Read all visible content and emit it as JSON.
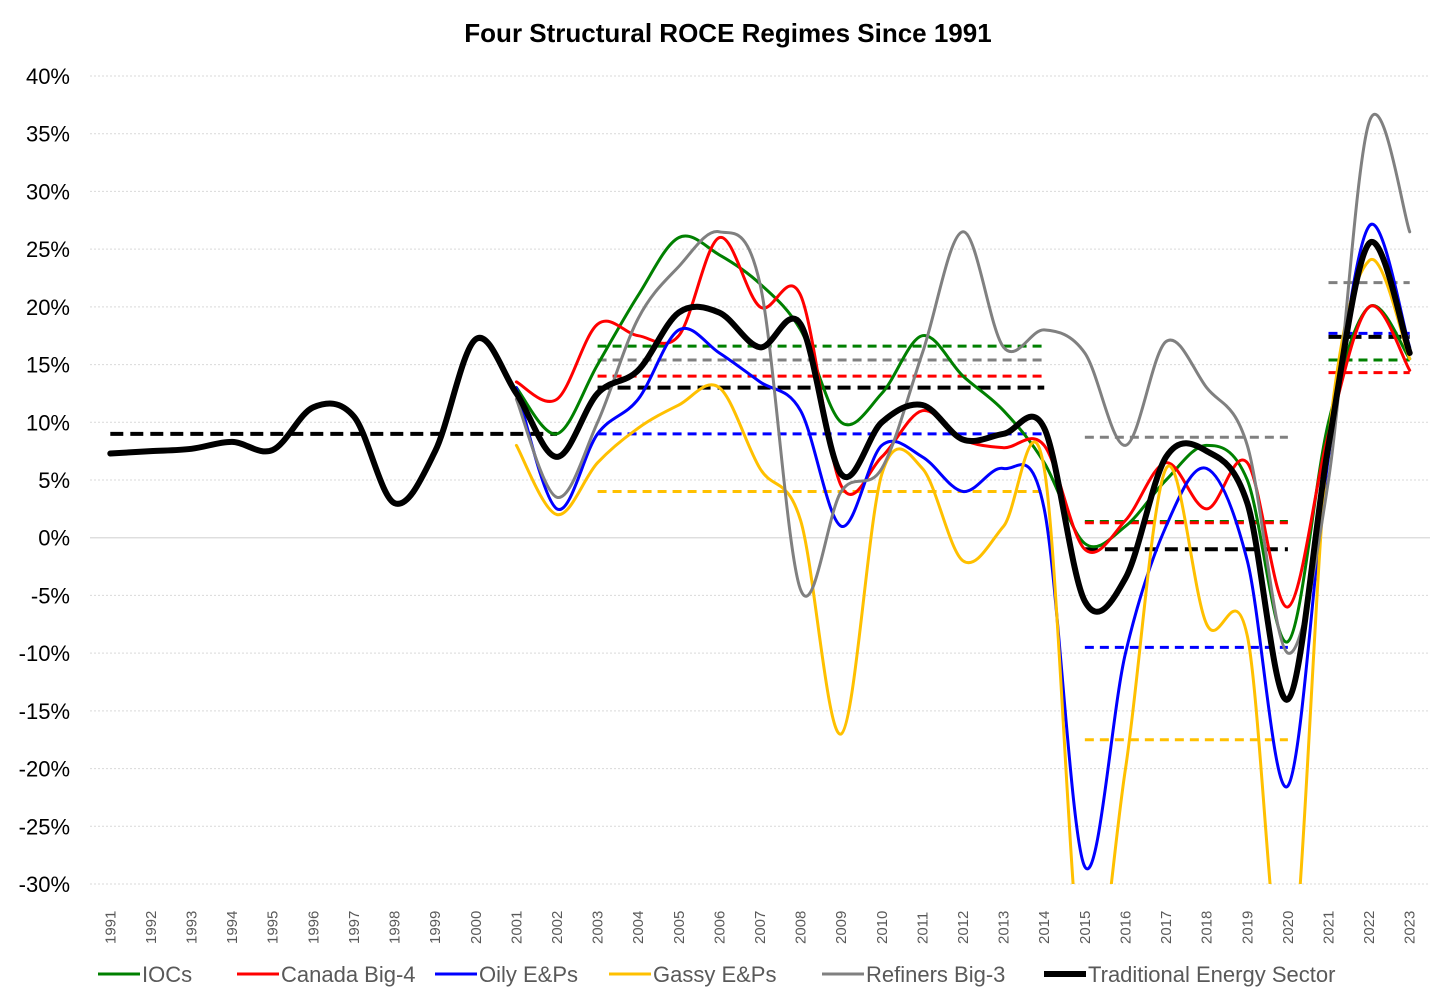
{
  "chart_data": {
    "type": "line",
    "title": "Four Structural ROCE Regimes Since 1991",
    "xlabel": "",
    "ylabel": "",
    "ylim": [
      -30,
      40
    ],
    "yticks": [
      40,
      35,
      30,
      25,
      20,
      15,
      10,
      5,
      0,
      -5,
      -10,
      -15,
      -20,
      -25,
      -30
    ],
    "ytick_labels": [
      "40%",
      "35%",
      "30%",
      "25%",
      "20%",
      "15%",
      "10%",
      "5%",
      "0%",
      "-5%",
      "-10%",
      "-15%",
      "-20%",
      "-25%",
      "-30%"
    ],
    "x": [
      1991,
      1992,
      1993,
      1994,
      1995,
      1996,
      1997,
      1998,
      1999,
      2000,
      2001,
      2002,
      2003,
      2004,
      2005,
      2006,
      2007,
      2008,
      2009,
      2010,
      2011,
      2012,
      2013,
      2014,
      2015,
      2016,
      2017,
      2018,
      2019,
      2020,
      2021,
      2022,
      2023
    ],
    "x_labels": [
      "1991",
      "1992",
      "1993",
      "1994",
      "1995",
      "1996",
      "1997",
      "1998",
      "1999",
      "2000",
      "2001",
      "2002",
      "2003",
      "2004",
      "2005",
      "2006",
      "2007",
      "2008",
      "2009",
      "2010",
      "2011",
      "2012",
      "2013",
      "2014",
      "2015",
      "2016",
      "2017",
      "2018",
      "2019",
      "2020",
      "2021",
      "2022",
      "2023"
    ],
    "grid": true,
    "legend_position": "bottom",
    "series": [
      {
        "name": "IOCs",
        "color": "#008000",
        "width": 3,
        "x": [
          2001,
          2002,
          2003,
          2004,
          2005,
          2006,
          2007,
          2008,
          2009,
          2010,
          2011,
          2012,
          2013,
          2014,
          2015,
          2016,
          2017,
          2018,
          2019,
          2020,
          2021,
          2022,
          2023
        ],
        "values": [
          13.0,
          9.0,
          15.0,
          21.0,
          26.0,
          24.5,
          22.0,
          18.0,
          10.0,
          12.5,
          17.5,
          14.0,
          11.0,
          6.5,
          -0.5,
          1.0,
          5.0,
          8.0,
          5.0,
          -9.0,
          10.0,
          20.0,
          15.5
        ]
      },
      {
        "name": "Canada Big-4",
        "color": "#ff0000",
        "width": 3,
        "x": [
          2001,
          2002,
          2003,
          2004,
          2005,
          2006,
          2007,
          2008,
          2009,
          2010,
          2011,
          2012,
          2013,
          2014,
          2015,
          2016,
          2017,
          2018,
          2019,
          2020,
          2021,
          2022,
          2023
        ],
        "values": [
          13.5,
          12.0,
          18.5,
          17.5,
          17.5,
          26.0,
          20.0,
          21.0,
          4.5,
          7.0,
          11.0,
          8.5,
          7.8,
          8.0,
          -1.0,
          1.5,
          6.5,
          2.5,
          6.5,
          -6.0,
          9.0,
          20.0,
          14.5
        ]
      },
      {
        "name": "Oily E&Ps",
        "color": "#0000ff",
        "width": 3,
        "x": [
          2001,
          2002,
          2003,
          2004,
          2005,
          2006,
          2007,
          2008,
          2009,
          2010,
          2011,
          2012,
          2013,
          2014,
          2015,
          2016,
          2017,
          2018,
          2019,
          2020,
          2021,
          2022,
          2023
        ],
        "values": [
          13.0,
          2.5,
          9.0,
          12.0,
          18.0,
          16.0,
          13.5,
          11.0,
          1.0,
          8.0,
          7.0,
          4.0,
          6.0,
          2.5,
          -28.5,
          -10.0,
          1.0,
          6.0,
          -2.0,
          -21.5,
          7.0,
          27.0,
          16.5
        ]
      },
      {
        "name": "Gassy E&Ps",
        "color": "#ffc000",
        "width": 3,
        "x": [
          2001,
          2002,
          2003,
          2004,
          2005,
          2006,
          2007,
          2008,
          2009,
          2010,
          2011,
          2012,
          2013,
          2014,
          2015,
          2016,
          2017,
          2018,
          2019,
          2020,
          2021,
          2022,
          2023
        ],
        "values": [
          8.0,
          2.0,
          6.5,
          9.5,
          11.5,
          13.0,
          6.0,
          1.5,
          -17.0,
          5.5,
          6.0,
          -2.0,
          1.0,
          6.0,
          -40.0,
          -20.0,
          6.0,
          -7.5,
          -8.5,
          -40.0,
          8.5,
          24.0,
          15.5
        ]
      },
      {
        "name": "Refiners Big-3",
        "color": "#808080",
        "width": 3,
        "x": [
          2001,
          2002,
          2003,
          2004,
          2005,
          2006,
          2007,
          2008,
          2009,
          2010,
          2011,
          2012,
          2013,
          2014,
          2015,
          2016,
          2017,
          2018,
          2019,
          2020,
          2021,
          2022,
          2023
        ],
        "values": [
          12.0,
          3.5,
          10.0,
          19.0,
          23.5,
          26.5,
          22.0,
          -4.5,
          4.0,
          6.0,
          16.0,
          26.5,
          16.5,
          18.0,
          16.0,
          8.0,
          17.0,
          13.0,
          8.0,
          -10.0,
          5.0,
          36.0,
          26.5
        ]
      },
      {
        "name": "Traditional Energy Sector",
        "color": "#000000",
        "width": 6,
        "x": [
          1991,
          1992,
          1993,
          1994,
          1995,
          1996,
          1997,
          1998,
          1999,
          2000,
          2001,
          2002,
          2003,
          2004,
          2005,
          2006,
          2007,
          2008,
          2009,
          2010,
          2011,
          2012,
          2013,
          2014,
          2015,
          2016,
          2017,
          2018,
          2019,
          2020,
          2021,
          2022,
          2023
        ],
        "values": [
          7.3,
          7.5,
          7.7,
          8.3,
          7.6,
          11.3,
          10.5,
          3.0,
          7.5,
          17.2,
          12.5,
          7.0,
          12.5,
          14.5,
          19.5,
          19.5,
          16.5,
          18.5,
          5.5,
          10.0,
          11.5,
          8.5,
          9.0,
          9.5,
          -5.5,
          -3.5,
          7.0,
          7.5,
          3.0,
          -14.0,
          8.0,
          25.5,
          16.0
        ]
      }
    ],
    "regime_averages": [
      {
        "series": "Traditional Energy Sector",
        "color": "#000000",
        "width": 4,
        "x0": 1991,
        "x1": 2002,
        "value": 9.0
      },
      {
        "series": "IOCs",
        "color": "#008000",
        "width": 3,
        "x0": 2003,
        "x1": 2014,
        "value": 16.6
      },
      {
        "series": "Refiners Big-3",
        "color": "#808080",
        "width": 3,
        "x0": 2003,
        "x1": 2014,
        "value": 15.4
      },
      {
        "series": "Canada Big-4",
        "color": "#ff0000",
        "width": 3,
        "x0": 2003,
        "x1": 2014,
        "value": 14.0
      },
      {
        "series": "Traditional Energy Sector",
        "color": "#000000",
        "width": 4,
        "x0": 2003,
        "x1": 2014,
        "value": 13.0
      },
      {
        "series": "Oily E&Ps",
        "color": "#0000ff",
        "width": 3,
        "x0": 2003,
        "x1": 2014,
        "value": 9.0
      },
      {
        "series": "Gassy E&Ps",
        "color": "#ffc000",
        "width": 3,
        "x0": 2003,
        "x1": 2014,
        "value": 4.0
      },
      {
        "series": "Refiners Big-3",
        "color": "#808080",
        "width": 3,
        "x0": 2015,
        "x1": 2020,
        "value": 8.7
      },
      {
        "series": "IOCs",
        "color": "#008000",
        "width": 3,
        "x0": 2015,
        "x1": 2020,
        "value": 1.4
      },
      {
        "series": "Canada Big-4",
        "color": "#ff0000",
        "width": 3,
        "x0": 2015,
        "x1": 2020,
        "value": 1.3
      },
      {
        "series": "Traditional Energy Sector",
        "color": "#000000",
        "width": 4,
        "x0": 2015,
        "x1": 2020,
        "value": -1.0
      },
      {
        "series": "Oily E&Ps",
        "color": "#0000ff",
        "width": 3,
        "x0": 2015,
        "x1": 2020,
        "value": -9.5
      },
      {
        "series": "Gassy E&Ps",
        "color": "#ffc000",
        "width": 3,
        "x0": 2015,
        "x1": 2020,
        "value": -17.5
      },
      {
        "series": "Refiners Big-3",
        "color": "#808080",
        "width": 3,
        "x0": 2021,
        "x1": 2023,
        "value": 22.1
      },
      {
        "series": "Oily E&Ps",
        "color": "#0000ff",
        "width": 3,
        "x0": 2021,
        "x1": 2023,
        "value": 17.7
      },
      {
        "series": "Traditional Energy Sector",
        "color": "#000000",
        "width": 4,
        "x0": 2021,
        "x1": 2023,
        "value": 17.4
      },
      {
        "series": "IOCs",
        "color": "#008000",
        "width": 3,
        "x0": 2021,
        "x1": 2023,
        "value": 15.4
      },
      {
        "series": "Canada Big-4",
        "color": "#ff0000",
        "width": 3,
        "x0": 2021,
        "x1": 2023,
        "value": 14.3
      }
    ]
  }
}
